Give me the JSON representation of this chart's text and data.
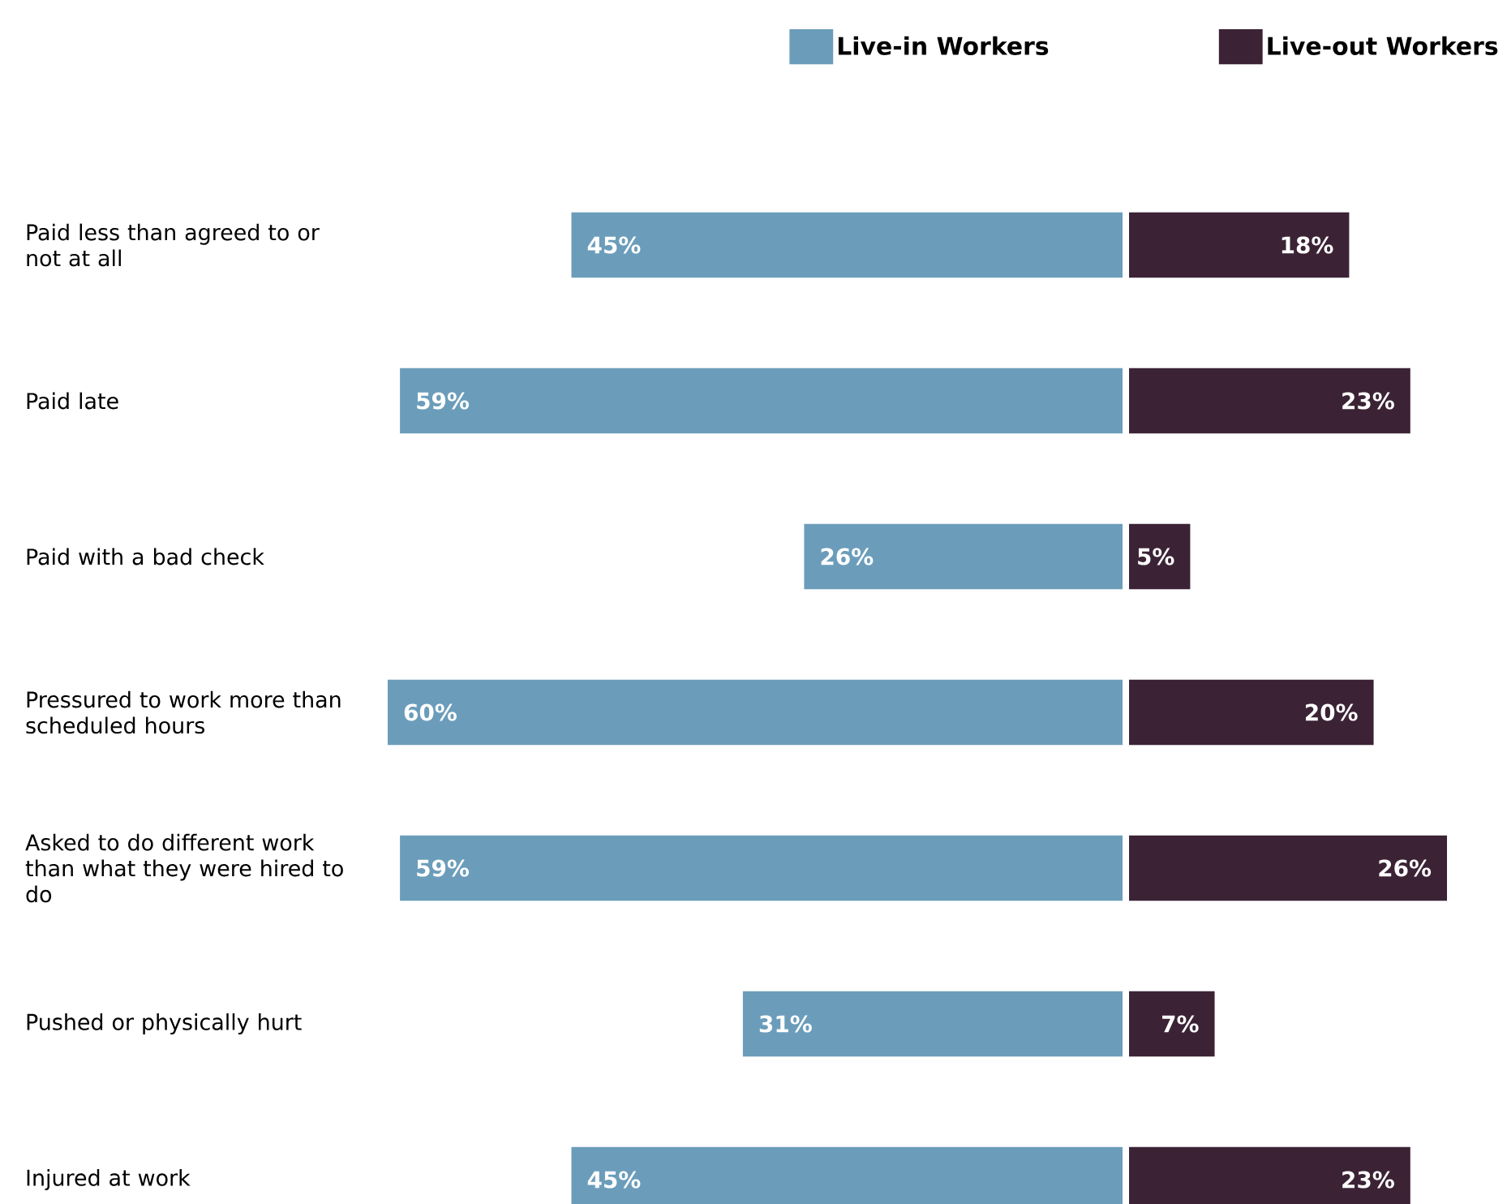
{
  "chart_data": [
    {
      "type": "bar",
      "orientation": "horizontal",
      "categories": [
        "Paid less than agreed to or not at all",
        "Paid late",
        "Paid with a bad check",
        "Pressured to work more than scheduled hours",
        "Asked to do different work than what they were hired to do",
        "Pushed or physically hurt",
        "Injured at work"
      ],
      "series": [
        {
          "name": "Live-in Workers",
          "color": "#6b9dbb",
          "values": [
            45,
            59,
            26,
            60,
            59,
            31,
            45
          ],
          "value_labels": [
            "45%",
            "59%",
            "26%",
            "60%",
            "59%",
            "31%",
            "45%"
          ]
        }
      ],
      "xlim": [
        60,
        0
      ],
      "tick_labels": "y",
      "legend": "top right"
    },
    {
      "type": "bar",
      "orientation": "horizontal",
      "categories": [
        null,
        null,
        null,
        null,
        null,
        null,
        null
      ],
      "series": [
        {
          "name": "Live-out Workers",
          "color": "#3b2335",
          "values": [
            18,
            23,
            5,
            20,
            26,
            7,
            23
          ],
          "value_labels": [
            "18%",
            "23%",
            "5%",
            "20%",
            "26%",
            "7%",
            "23%"
          ]
        }
      ],
      "xlim": [
        0,
        26
      ],
      "tick_labels": false,
      "legend": "top right"
    }
  ]
}
